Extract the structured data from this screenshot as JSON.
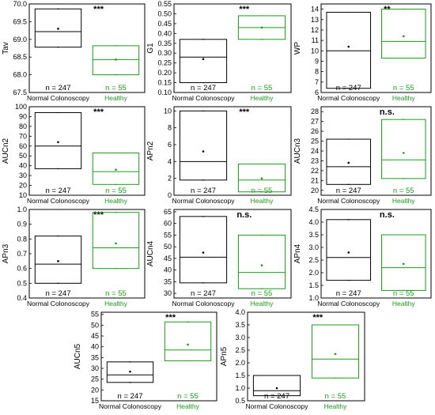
{
  "colors": {
    "normal": "#000000",
    "healthy": "#1a9c1a"
  },
  "categories": [
    "Normal Colonoscopy",
    "Healthy"
  ],
  "n_labels": [
    "n = 247",
    "n = 55"
  ],
  "chart_data": [
    {
      "type": "box",
      "ylabel": "Tav",
      "significance": "***",
      "ylim": [
        67.5,
        70.0
      ],
      "ticks": [
        "67.5",
        "68.0",
        "68.5",
        "69.0",
        "69.5",
        "70.0"
      ],
      "series": [
        {
          "category": "Normal Colonoscopy",
          "q1": 68.78,
          "median": 69.22,
          "q3": 69.86,
          "mean": 69.3,
          "whisker_low": 68.78,
          "whisker_high": 69.86
        },
        {
          "category": "Healthy",
          "q1": 68.0,
          "median": 68.43,
          "q3": 68.82,
          "mean": 68.43,
          "whisker_low": 68.0,
          "whisker_high": 68.82
        }
      ]
    },
    {
      "type": "box",
      "ylabel": "G1",
      "significance": "***",
      "ylim": [
        0.1,
        0.55
      ],
      "ticks": [
        "0.10",
        "0.15",
        "0.20",
        "0.25",
        "0.30",
        "0.35",
        "0.40",
        "0.45",
        "0.50",
        "0.55"
      ],
      "series": [
        {
          "category": "Normal Colonoscopy",
          "q1": 0.15,
          "median": 0.28,
          "q3": 0.37,
          "mean": 0.27,
          "whisker_low": 0.15,
          "whisker_high": 0.37
        },
        {
          "category": "Healthy",
          "q1": 0.37,
          "median": 0.43,
          "q3": 0.49,
          "mean": 0.43,
          "whisker_low": 0.37,
          "whisker_high": 0.49
        }
      ]
    },
    {
      "type": "box",
      "ylabel": "WP",
      "significance": "**",
      "ylim": [
        6,
        14.5
      ],
      "ticks": [
        "6",
        "7",
        "8",
        "9",
        "10",
        "11",
        "12",
        "13",
        "14"
      ],
      "series": [
        {
          "category": "Normal Colonoscopy",
          "q1": 6.4,
          "median": 10.0,
          "q3": 13.7,
          "mean": 10.4,
          "whisker_low": 6.4,
          "whisker_high": 13.7
        },
        {
          "category": "Healthy",
          "q1": 9.3,
          "median": 10.9,
          "q3": 14.0,
          "mean": 11.4,
          "whisker_low": 9.3,
          "whisker_high": 14.0
        }
      ]
    },
    {
      "type": "box",
      "ylabel": "AUCn2",
      "significance": "***",
      "ylim": [
        10,
        100
      ],
      "ticks": [
        "10",
        "20",
        "30",
        "40",
        "50",
        "60",
        "70",
        "80",
        "90",
        "100"
      ],
      "series": [
        {
          "category": "Normal Colonoscopy",
          "q1": 37,
          "median": 60,
          "q3": 94,
          "mean": 64,
          "whisker_low": 37,
          "whisker_high": 94
        },
        {
          "category": "Healthy",
          "q1": 21,
          "median": 34,
          "q3": 53,
          "mean": 36,
          "whisker_low": 21,
          "whisker_high": 53
        }
      ]
    },
    {
      "type": "box",
      "ylabel": "APn2",
      "significance": "***",
      "ylim": [
        0,
        10.5
      ],
      "ticks": [
        "0",
        "2",
        "4",
        "6",
        "8",
        "10"
      ],
      "series": [
        {
          "category": "Normal Colonoscopy",
          "q1": 1.8,
          "median": 4.0,
          "q3": 10.0,
          "mean": 5.2,
          "whisker_low": 1.8,
          "whisker_high": 10.0
        },
        {
          "category": "Healthy",
          "q1": 0.4,
          "median": 1.8,
          "q3": 3.7,
          "mean": 2.0,
          "whisker_low": 0.4,
          "whisker_high": 3.7
        }
      ]
    },
    {
      "type": "box",
      "ylabel": "AUCn3",
      "significance": "n.s.",
      "ylim": [
        19.5,
        28.5
      ],
      "ticks": [
        "20",
        "21",
        "22",
        "23",
        "24",
        "25",
        "26",
        "27",
        "28"
      ],
      "series": [
        {
          "category": "Normal Colonoscopy",
          "q1": 20.6,
          "median": 22.4,
          "q3": 25.2,
          "mean": 22.8,
          "whisker_low": 20.6,
          "whisker_high": 25.2
        },
        {
          "category": "Healthy",
          "q1": 21.2,
          "median": 23.1,
          "q3": 27.2,
          "mean": 23.8,
          "whisker_low": 21.2,
          "whisker_high": 27.2
        }
      ]
    },
    {
      "type": "box",
      "ylabel": "APn3",
      "significance": "***",
      "ylim": [
        0.4,
        1.0
      ],
      "ticks": [
        "0.4",
        "0.5",
        "0.6",
        "0.7",
        "0.8",
        "0.9",
        "1.0"
      ],
      "series": [
        {
          "category": "Normal Colonoscopy",
          "q1": 0.5,
          "median": 0.63,
          "q3": 0.82,
          "mean": 0.65,
          "whisker_low": 0.5,
          "whisker_high": 0.82
        },
        {
          "category": "Healthy",
          "q1": 0.6,
          "median": 0.74,
          "q3": 0.98,
          "mean": 0.77,
          "whisker_low": 0.6,
          "whisker_high": 0.98
        }
      ]
    },
    {
      "type": "box",
      "ylabel": "AUCn4",
      "significance": "n.s.",
      "ylim": [
        28,
        66
      ],
      "ticks": [
        "30",
        "35",
        "40",
        "45",
        "50",
        "55",
        "60",
        "65"
      ],
      "series": [
        {
          "category": "Normal Colonoscopy",
          "q1": 34.5,
          "median": 45.5,
          "q3": 63.0,
          "mean": 47.5,
          "whisker_low": 34.5,
          "whisker_high": 63.0
        },
        {
          "category": "Healthy",
          "q1": 32.0,
          "median": 39.0,
          "q3": 55.0,
          "mean": 42.0,
          "whisker_low": 32.0,
          "whisker_high": 55.0
        }
      ]
    },
    {
      "type": "box",
      "ylabel": "APn4",
      "significance": "n.s.",
      "ylim": [
        1.0,
        4.5
      ],
      "ticks": [
        "1.0",
        "1.5",
        "2.0",
        "2.5",
        "3.0",
        "3.5",
        "4.0",
        "4.5"
      ],
      "series": [
        {
          "category": "Normal Colonoscopy",
          "q1": 1.7,
          "median": 2.6,
          "q3": 4.1,
          "mean": 2.8,
          "whisker_low": 1.7,
          "whisker_high": 4.1
        },
        {
          "category": "Healthy",
          "q1": 1.3,
          "median": 2.2,
          "q3": 3.5,
          "mean": 2.35,
          "whisker_low": 1.3,
          "whisker_high": 3.5
        }
      ]
    },
    {
      "type": "box",
      "ylabel": "AUCn5",
      "significance": "***",
      "ylim": [
        15,
        56
      ],
      "ticks": [
        "15",
        "20",
        "25",
        "30",
        "35",
        "40",
        "45",
        "50",
        "55"
      ],
      "series": [
        {
          "category": "Normal Colonoscopy",
          "q1": 23.5,
          "median": 27.0,
          "q3": 33.0,
          "mean": 28.5,
          "whisker_low": 23.5,
          "whisker_high": 33.0
        },
        {
          "category": "Healthy",
          "q1": 33.5,
          "median": 38.5,
          "q3": 51.5,
          "mean": 41.0,
          "whisker_low": 33.5,
          "whisker_high": 51.5
        }
      ]
    },
    {
      "type": "box",
      "ylabel": "APn5",
      "significance": "***",
      "ylim": [
        0.5,
        4.0
      ],
      "ticks": [
        "0.5",
        "1.0",
        "1.5",
        "2.0",
        "2.5",
        "3.0",
        "3.5",
        "4.0"
      ],
      "series": [
        {
          "category": "Normal Colonoscopy",
          "q1": 0.7,
          "median": 0.9,
          "q3": 1.5,
          "mean": 1.0,
          "whisker_low": 0.7,
          "whisker_high": 1.5
        },
        {
          "category": "Healthy",
          "q1": 1.4,
          "median": 2.15,
          "q3": 3.5,
          "mean": 2.35,
          "whisker_low": 1.4,
          "whisker_high": 3.5
        }
      ]
    }
  ]
}
